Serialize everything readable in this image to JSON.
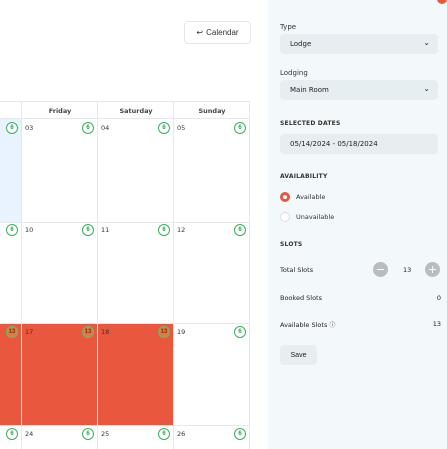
{
  "header": {
    "back_label": "Calendar",
    "back_icon": "arrow-left-icon"
  },
  "calendar": {
    "columns": [
      "Friday",
      "Saturday",
      "Sunday"
    ],
    "weeks": [
      {
        "thu_badge": "6",
        "fri": {
          "day": "03",
          "badge": "6"
        },
        "sat": {
          "day": "04",
          "badge": "6"
        },
        "sun": {
          "day": "05",
          "badge": "6"
        }
      },
      {
        "thu_badge": "6",
        "fri": {
          "day": "10",
          "badge": "6"
        },
        "sat": {
          "day": "11",
          "badge": "6"
        },
        "sun": {
          "day": "12",
          "badge": "6"
        }
      },
      {
        "thu_badge": "13",
        "fri": {
          "day": "17",
          "badge": "13"
        },
        "sat": {
          "day": "18",
          "badge": "13"
        },
        "sun": {
          "day": "19",
          "badge": "6"
        }
      },
      {
        "thu_badge": "6",
        "fri": {
          "day": "24",
          "badge": "6"
        },
        "sat": {
          "day": "25",
          "badge": "6"
        },
        "sun": {
          "day": "26",
          "badge": "6"
        }
      }
    ],
    "colors": {
      "selected": "#e9573f",
      "today": "#e9f3fd",
      "badge_border": "#35b35a"
    }
  },
  "panel": {
    "type_label": "Type",
    "type_value": "Lodge",
    "lodging_label": "Lodging",
    "lodging_value": "Main Room",
    "selected_dates_label": "SELECTED DATES",
    "selected_dates_value": "05/14/2024 - 05/18/2024",
    "availability_label": "AVAILABILITY",
    "available_label": "Available",
    "unavailable_label": "Unavailable",
    "slots_label": "SLOTS",
    "total_slots_label": "Total Slots",
    "total_slots_value": "13",
    "booked_slots_label": "Booked Slots",
    "booked_slots_value": "0",
    "available_slots_label": "Available Slots",
    "available_slots_value": "13",
    "save_label": "Save"
  }
}
